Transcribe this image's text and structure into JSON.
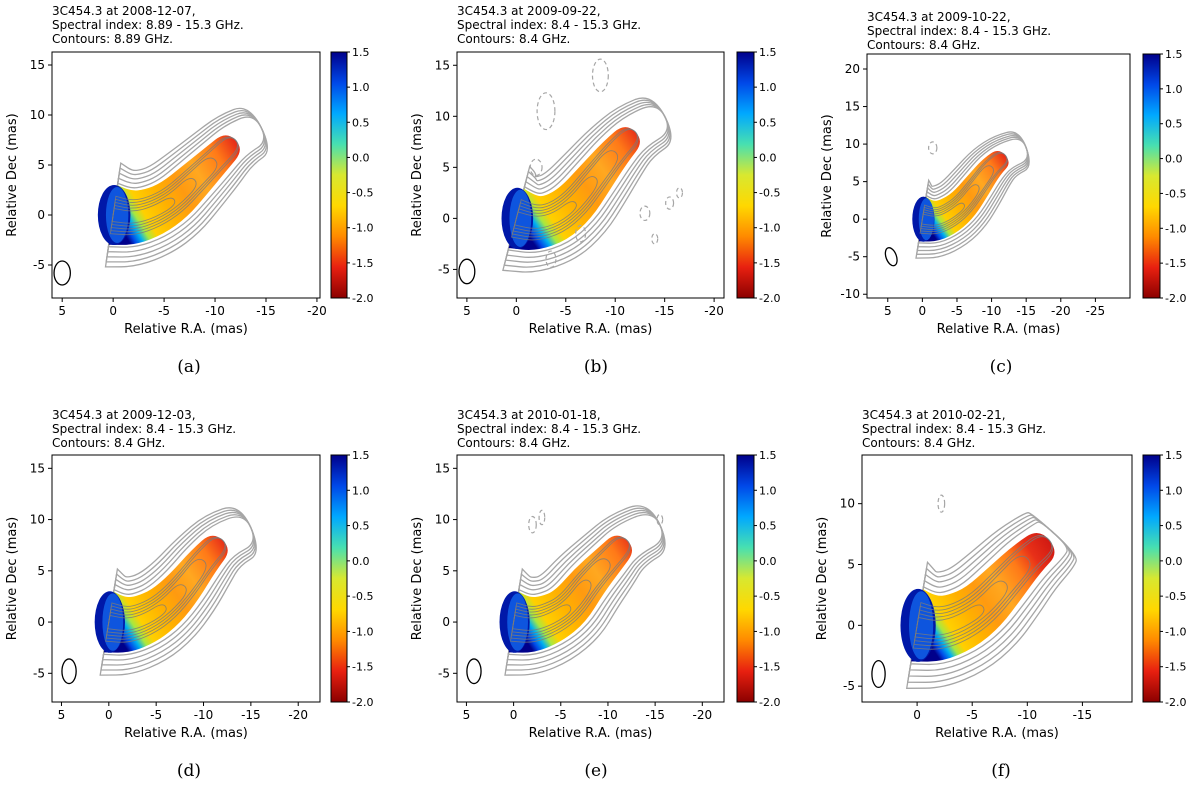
{
  "colors": {
    "contour": "#a6a6a6",
    "contour_inner": "#7a7a7a",
    "beam": "#000000",
    "colormap": [
      "#8b0000",
      "#e82010",
      "#ff8a00",
      "#ffd800",
      "#d8e830",
      "#48e0b0",
      "#00a8ff",
      "#0048e8",
      "#00008b"
    ]
  },
  "chart_data": [
    {
      "type": "heatmap",
      "panel_label": "(a)",
      "title_lines": [
        "3C454.3 at 2008-12-07,",
        "Spectral index: 8.89 - 15.3 GHz.",
        "Contours: 8.89 GHz."
      ],
      "xlabel": "Relative R.A. (mas)",
      "ylabel": "Relative Dec (mas)",
      "xlim": [
        6,
        -20.3
      ],
      "ylim": [
        -8.3,
        16.3
      ],
      "xticks": [
        5,
        0,
        -5,
        -10,
        -15,
        -20
      ],
      "xtick_labels": [
        "5",
        "0",
        "-5",
        "-10",
        "-15",
        "-20"
      ],
      "yticks": [
        -5,
        0,
        5,
        10,
        15
      ],
      "ytick_labels": [
        "-5",
        "0",
        "5",
        "10",
        "15"
      ],
      "colorbar": {
        "range": [
          -2.0,
          1.5
        ],
        "ticks": [
          "1.5",
          "1.0",
          "0.5",
          "0.0",
          "-0.5",
          "-1.0",
          "-1.5",
          "-2.0"
        ]
      },
      "jet_ridge": [
        [
          0,
          0
        ],
        [
          -2,
          -0.3
        ],
        [
          -4,
          0.3
        ],
        [
          -6,
          1.5
        ],
        [
          -8,
          3.5
        ],
        [
          -10,
          5.5
        ],
        [
          -12,
          7.5
        ],
        [
          -14.5,
          8.8
        ]
      ],
      "core_center": [
        0,
        0
      ],
      "beam": {
        "x": 5,
        "y": -5.8,
        "width_mas": 1.6,
        "height_mas": 2.4,
        "angle_deg": 0
      },
      "negative_contours": []
    },
    {
      "type": "heatmap",
      "panel_label": "(b)",
      "title_lines": [
        "3C454.3 at 2009-09-22,",
        "Spectral index: 8.4 - 15.3 GHz.",
        "Contours: 8.4 GHz."
      ],
      "xlabel": "Relative R.A. (mas)",
      "ylabel": "Relative Dec (mas)",
      "xlim": [
        6,
        -21
      ],
      "ylim": [
        -7.8,
        16.3
      ],
      "xticks": [
        5,
        0,
        -5,
        -10,
        -15,
        -20
      ],
      "xtick_labels": [
        "5",
        "0",
        "-5",
        "-10",
        "-15",
        "-20"
      ],
      "yticks": [
        -5,
        0,
        5,
        10,
        15
      ],
      "ytick_labels": [
        "-5",
        "0",
        "5",
        "10",
        "15"
      ],
      "colorbar": {
        "range": [
          -2.0,
          1.5
        ],
        "ticks": [
          "1.5",
          "1.0",
          "0.5",
          "0.0",
          "-0.5",
          "-1.0",
          "-1.5",
          "-2.0"
        ]
      },
      "jet_ridge": [
        [
          0,
          0
        ],
        [
          -2,
          -0.5
        ],
        [
          -4,
          0
        ],
        [
          -6,
          1.5
        ],
        [
          -8,
          4
        ],
        [
          -10,
          6.5
        ],
        [
          -12,
          8.5
        ],
        [
          -15,
          10
        ]
      ],
      "core_center": [
        0,
        0
      ],
      "beam": {
        "x": 5,
        "y": -5.2,
        "width_mas": 1.6,
        "height_mas": 2.4,
        "angle_deg": 0
      },
      "negative_contours": [
        [
          -3,
          10.5,
          0.9,
          1.8
        ],
        [
          -8.5,
          14,
          0.8,
          1.6
        ],
        [
          -2,
          5,
          0.6,
          0.8
        ],
        [
          -6.5,
          -1.5,
          0.5,
          0.8
        ],
        [
          -13,
          0.5,
          0.5,
          0.7
        ],
        [
          -15.5,
          1.5,
          0.4,
          0.6
        ],
        [
          -3.5,
          -4,
          0.5,
          0.8
        ],
        [
          -14,
          -2,
          0.3,
          0.5
        ],
        [
          -16.5,
          2.5,
          0.3,
          0.5
        ]
      ]
    },
    {
      "type": "heatmap",
      "panel_label": "(c)",
      "title_lines": [
        "3C454.3 at 2009-10-22,",
        "Spectral index: 8.4 - 15.3 GHz.",
        "Contours: 8.4 GHz."
      ],
      "xlabel": "Relative R.A. (mas)",
      "ylabel": "Relative Dec (mas)",
      "xlim": [
        8,
        -30
      ],
      "ylim": [
        -10.5,
        22
      ],
      "xticks": [
        5,
        0,
        -5,
        -10,
        -15,
        -20,
        -25
      ],
      "xtick_labels": [
        "5",
        "0",
        "-5",
        "-10",
        "-15",
        "-20",
        "-25"
      ],
      "yticks": [
        -10,
        -5,
        0,
        5,
        10,
        15,
        20
      ],
      "ytick_labels": [
        "-10",
        "-5",
        "0",
        "5",
        "10",
        "15",
        "20"
      ],
      "colorbar": {
        "range": [
          -2.0,
          1.5
        ],
        "ticks": [
          "1.5",
          "1.0",
          "0.5",
          "0.0",
          "-0.5",
          "-1.0",
          "-1.5",
          "-2.0"
        ]
      },
      "jet_ridge": [
        [
          0,
          0
        ],
        [
          -2,
          -0.3
        ],
        [
          -4,
          0.5
        ],
        [
          -6,
          2
        ],
        [
          -8,
          4.5
        ],
        [
          -10,
          7
        ],
        [
          -12,
          8.5
        ],
        [
          -15,
          9.5
        ]
      ],
      "core_center": [
        0,
        0
      ],
      "beam": {
        "x": 4.5,
        "y": -5,
        "width_mas": 1.5,
        "height_mas": 2.5,
        "angle_deg": -20
      },
      "negative_contours": [
        [
          -1.5,
          9.5,
          0.6,
          0.8
        ]
      ]
    },
    {
      "type": "heatmap",
      "panel_label": "(d)",
      "title_lines": [
        "3C454.3 at 2009-12-03,",
        "Spectral index: 8.4 - 15.3 GHz.",
        "Contours: 8.4 GHz."
      ],
      "xlabel": "Relative R.A. (mas)",
      "ylabel": "Relative Dec (mas)",
      "xlim": [
        6,
        -22.3
      ],
      "ylim": [
        -7.8,
        16.3
      ],
      "xticks": [
        5,
        0,
        -5,
        -10,
        -15,
        -20
      ],
      "xtick_labels": [
        "5",
        "0",
        "-5",
        "-10",
        "-15",
        "-20"
      ],
      "yticks": [
        -5,
        0,
        5,
        10,
        15
      ],
      "ytick_labels": [
        "-5",
        "0",
        "5",
        "10",
        "15"
      ],
      "colorbar": {
        "range": [
          -2.0,
          1.5
        ],
        "ticks": [
          "1.5",
          "1.0",
          "0.5",
          "0.0",
          "-0.5",
          "-1.0",
          "-1.5",
          "-2.0"
        ]
      },
      "jet_ridge": [
        [
          0,
          0
        ],
        [
          -2,
          -0.3
        ],
        [
          -4,
          0.3
        ],
        [
          -6,
          1.5
        ],
        [
          -8,
          3.5
        ],
        [
          -10,
          6
        ],
        [
          -12,
          8
        ],
        [
          -15,
          9.2
        ]
      ],
      "core_center": [
        0,
        0
      ],
      "beam": {
        "x": 4.2,
        "y": -4.8,
        "width_mas": 1.5,
        "height_mas": 2.4,
        "angle_deg": 0
      },
      "negative_contours": []
    },
    {
      "type": "heatmap",
      "panel_label": "(e)",
      "title_lines": [
        "3C454.3 at 2010-01-18,",
        "Spectral index: 8.4 - 15.3 GHz.",
        "Contours: 8.4 GHz."
      ],
      "xlabel": "Relative R.A. (mas)",
      "ylabel": "Relative Dec (mas)",
      "xlim": [
        6,
        -22.3
      ],
      "ylim": [
        -7.8,
        16.3
      ],
      "xticks": [
        5,
        0,
        -5,
        -10,
        -15,
        -20
      ],
      "xtick_labels": [
        "5",
        "0",
        "-5",
        "-10",
        "-15",
        "-20"
      ],
      "yticks": [
        -5,
        0,
        5,
        10,
        15
      ],
      "ytick_labels": [
        "-5",
        "0",
        "5",
        "10",
        "15"
      ],
      "colorbar": {
        "range": [
          -2.0,
          1.5
        ],
        "ticks": [
          "1.5",
          "1.0",
          "0.5",
          "0.0",
          "-0.5",
          "-1.0",
          "-1.5",
          "-2.0"
        ]
      },
      "jet_ridge": [
        [
          0,
          0
        ],
        [
          -2,
          -0.3
        ],
        [
          -4,
          0.3
        ],
        [
          -6,
          1.5
        ],
        [
          -8,
          4
        ],
        [
          -10,
          6
        ],
        [
          -12,
          8
        ],
        [
          -15.5,
          9.5
        ]
      ],
      "core_center": [
        0,
        0
      ],
      "beam": {
        "x": 4.2,
        "y": -4.8,
        "width_mas": 1.5,
        "height_mas": 2.4,
        "angle_deg": 0
      },
      "negative_contours": [
        [
          -2,
          9.5,
          0.4,
          0.8
        ],
        [
          -3,
          10.2,
          0.3,
          0.7
        ],
        [
          -15.5,
          10,
          0.3,
          0.5
        ]
      ]
    },
    {
      "type": "heatmap",
      "panel_label": "(f)",
      "title_lines": [
        "3C454.3 at 2010-02-21,",
        "Spectral index: 8.4 - 15.3 GHz.",
        "Contours: 8.4 GHz."
      ],
      "xlabel": "Relative R.A. (mas)",
      "ylabel": "Relative Dec (mas)",
      "xlim": [
        5,
        -19.5
      ],
      "ylim": [
        -6.3,
        14
      ],
      "xticks": [
        0,
        -5,
        -10,
        -15
      ],
      "xtick_labels": [
        "0",
        "-5",
        "-10",
        "-15"
      ],
      "yticks": [
        -5,
        0,
        5,
        10
      ],
      "ytick_labels": [
        "-5",
        "0",
        "5",
        "10"
      ],
      "colorbar": {
        "range": [
          -2.0,
          1.5
        ],
        "ticks": [
          "1.5",
          "1.0",
          "0.5",
          "0.0",
          "-0.5",
          "-1.0",
          "-1.5",
          "-2.0"
        ]
      },
      "jet_ridge": [
        [
          0,
          0
        ],
        [
          -2,
          -0.3
        ],
        [
          -4,
          0.3
        ],
        [
          -6,
          1.5
        ],
        [
          -8,
          3.5
        ],
        [
          -10,
          5.5
        ],
        [
          -12,
          7
        ],
        [
          -12.5,
          7.5
        ]
      ],
      "core_center": [
        0,
        0
      ],
      "beam": {
        "x": 3.5,
        "y": -4,
        "width_mas": 1.2,
        "height_mas": 2.2,
        "angle_deg": 0
      },
      "negative_contours": [
        [
          -2.2,
          10,
          0.3,
          0.7
        ]
      ]
    }
  ]
}
